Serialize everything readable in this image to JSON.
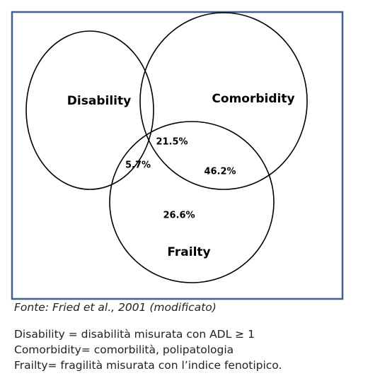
{
  "sets": [
    {
      "label": "Disability"
    },
    {
      "label": "Comorbidity"
    },
    {
      "label": "Frailty"
    }
  ],
  "regions": [
    {
      "label": "21.5%"
    },
    {
      "label": "5.7%"
    },
    {
      "label": "46.2%"
    },
    {
      "label": "26.6%"
    }
  ],
  "source": "Fonte: Fried et al., 2001 (modificato)",
  "legend": [
    "Disability = disabilità misurata con ADL ≥ 1",
    "Comorbidity= comorbilità, polipatologia",
    "Frailty= fragilità misurata con l’indice fenotipico."
  ]
}
